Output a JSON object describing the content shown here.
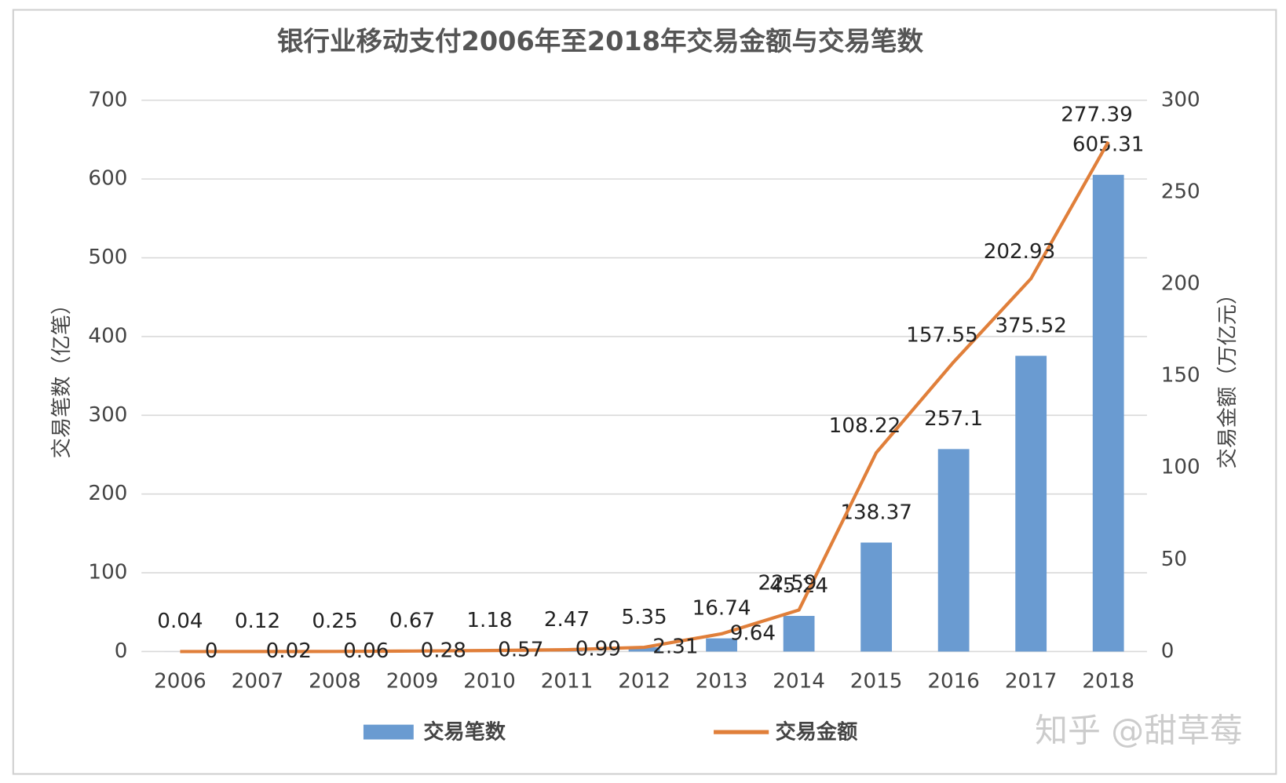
{
  "chart_data": {
    "type": "bar_line",
    "title": "银行业移动支付2006年至2018年交易金额与交易笔数",
    "y_label": "交易笔数（亿笔）",
    "y2_label": "交易金额（万亿元）",
    "watermark": "知乎 @甜草莓",
    "categories": [
      "2006",
      "2007",
      "2008",
      "2009",
      "2010",
      "2011",
      "2012",
      "2013",
      "2014",
      "2015",
      "2016",
      "2017",
      "2018"
    ],
    "series": [
      {
        "name": "交易笔数",
        "type": "bar",
        "color": "#6a9bd1",
        "values": [
          0.04,
          0.12,
          0.25,
          0.67,
          1.18,
          2.47,
          5.35,
          16.74,
          45.24,
          138.37,
          257.1,
          375.52,
          605.31
        ]
      },
      {
        "name": "交易金额",
        "type": "line",
        "axis": "y2",
        "color": "#e07f3a",
        "values": [
          0,
          0.02,
          0.06,
          0.28,
          0.57,
          0.99,
          2.31,
          9.64,
          22.59,
          108.22,
          157.55,
          202.93,
          277.39
        ]
      }
    ],
    "ylim": [
      0,
      700
    ],
    "yticks": [
      0,
      100,
      200,
      300,
      400,
      500,
      600,
      700
    ],
    "y2lim": [
      0,
      300
    ],
    "y2ticks": [
      0,
      50,
      100,
      150,
      200,
      250,
      300
    ],
    "grid": true
  }
}
